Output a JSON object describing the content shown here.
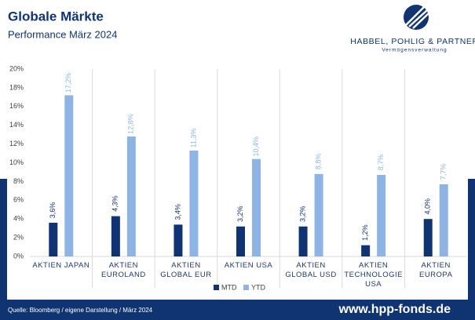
{
  "header": {
    "title": "Globale Märkte",
    "subtitle": "Performance März 2024",
    "logo_name": "HABBEL, POHLIG & PARTNER",
    "logo_tagline": "Vermögensverwaltung"
  },
  "footer": {
    "source": "Quelle: Bloomberg / eigene Darstellung / März 2024",
    "url": "www.hpp-fonds.de"
  },
  "chart_data": {
    "type": "bar",
    "categories": [
      "AKTIEN JAPAN",
      "AKTIEN EUROLAND",
      "AKTIEN GLOBAL EUR",
      "AKTIEN USA",
      "AKTIEN GLOBAL USD",
      "AKTIEN TECHNOLOGIE USA",
      "AKTIEN EUROPA"
    ],
    "series": [
      {
        "name": "MTD",
        "color": "#0f3471",
        "values": [
          3.6,
          4.3,
          3.4,
          3.2,
          3.2,
          1.2,
          4.0
        ],
        "value_labels": [
          "3,6%",
          "4,3%",
          "3,4%",
          "3,2%",
          "3,2%",
          "1,2%",
          "4,0%"
        ]
      },
      {
        "name": "YTD",
        "color": "#8db4e2",
        "values": [
          17.2,
          12.8,
          11.3,
          10.4,
          8.8,
          8.7,
          7.7
        ],
        "value_labels": [
          "17,2%",
          "12,8%",
          "11,3%",
          "10,4%",
          "8,8%",
          "8,7%",
          "7,7%"
        ]
      }
    ],
    "ylim": [
      0,
      20
    ],
    "yticks": [
      {
        "value": 0,
        "label": "0%"
      },
      {
        "value": 2,
        "label": "2%"
      },
      {
        "value": 4,
        "label": "4%"
      },
      {
        "value": 6,
        "label": "6%"
      },
      {
        "value": 8,
        "label": "8%"
      },
      {
        "value": 10,
        "label": "10%"
      },
      {
        "value": 12,
        "label": "12%"
      },
      {
        "value": 14,
        "label": "14%"
      },
      {
        "value": 16,
        "label": "16%"
      },
      {
        "value": 18,
        "label": "18%"
      },
      {
        "value": 20,
        "label": "20%"
      }
    ],
    "grid": false,
    "legend": "bottom"
  }
}
